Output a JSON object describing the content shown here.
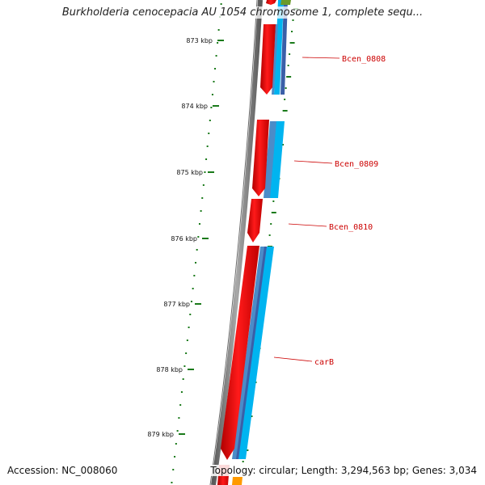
{
  "title": "Burkholderia cenocepacia AU 1054 chromosome 1, complete sequ...",
  "footer": {
    "accession": "Accession: NC_008060",
    "topology": "Topology: circular; Length: 3,294,563 bp; Genes: 3,034"
  },
  "ruler": {
    "ticks": [
      "873 kbp",
      "874 kbp",
      "875 kbp",
      "876 kbp",
      "877 kbp",
      "878 kbp",
      "879 kbp"
    ]
  },
  "genes": [
    {
      "label": "Bcen_0808"
    },
    {
      "label": "Bcen_0809"
    },
    {
      "label": "Bcen_0810"
    },
    {
      "label": "carB"
    }
  ],
  "colors": {
    "cds": "#ff0000",
    "backbone": "#7f7f7f",
    "blast_light": "#00b4f0",
    "blast_mid": "#4b8cc8",
    "blast_dark": "#3a5fa8",
    "gc_skew": "#1a7a1a",
    "label": "#cc0000"
  }
}
